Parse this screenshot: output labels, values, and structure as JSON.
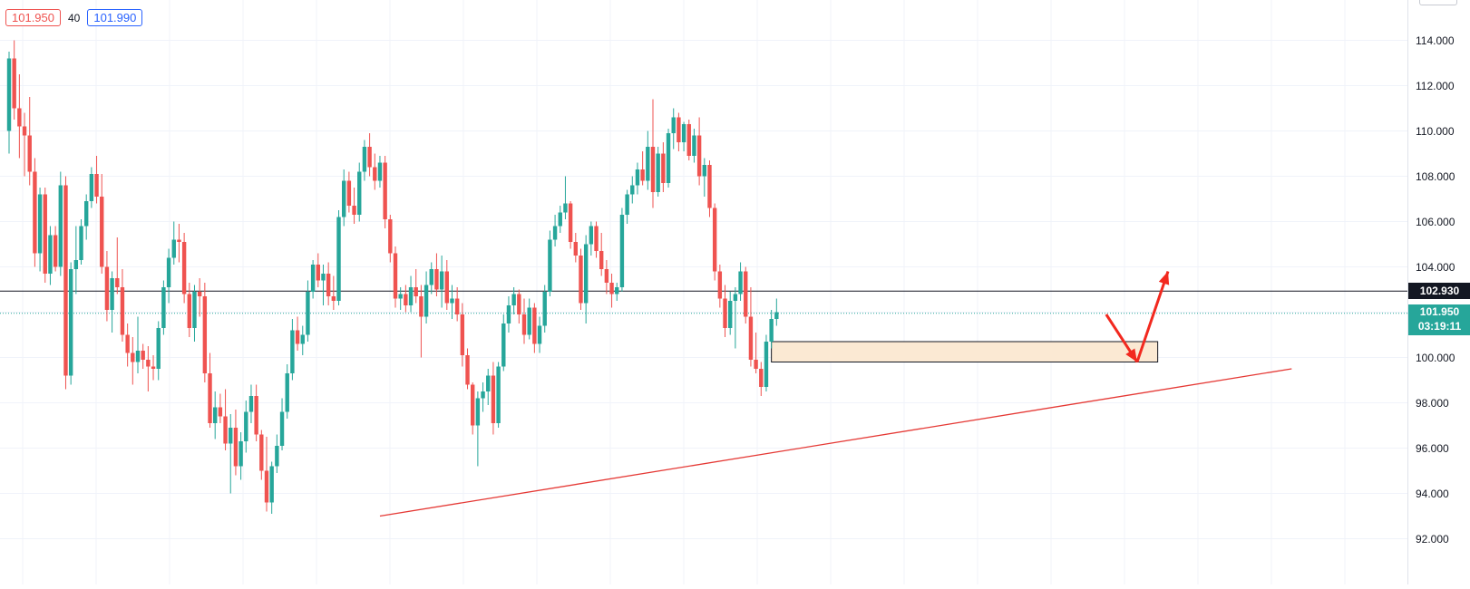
{
  "toolbar": {
    "sell_price": "101.950",
    "spread": "40",
    "buy_price": "101.990"
  },
  "price_axis": {
    "ticks": [
      "114.000",
      "112.000",
      "110.000",
      "108.000",
      "106.000",
      "104.000",
      "100.000",
      "98.000",
      "96.000",
      "94.000",
      "92.000"
    ],
    "horizontal_line_label": "102.930",
    "last_price_label": "101.950",
    "countdown_label": "03:19:11"
  },
  "colors": {
    "up": "#26a69a",
    "down": "#ef5350",
    "trendline": "#e53935",
    "zone_fill": "#fbe9d3",
    "arrow": "#f2291f"
  },
  "chart_data": {
    "type": "candlestick",
    "ylim": [
      91.0,
      116.0
    ],
    "yticks": [
      92,
      94,
      96,
      98,
      100,
      102,
      104,
      106,
      108,
      110,
      112,
      114
    ],
    "horizontal_line": 102.93,
    "last_price": 101.95,
    "support_zone": {
      "from_candle": 148,
      "to_candle": 223,
      "low": 99.8,
      "high": 100.7
    },
    "trendline": {
      "from_candle": 72,
      "from_price": 93.0,
      "to_candle": 249,
      "to_price": 99.5
    },
    "projection_arrow": [
      {
        "candle": 213,
        "price": 101.9
      },
      {
        "candle": 219,
        "price": 99.8
      },
      {
        "candle": 225,
        "price": 103.8
      }
    ],
    "ohlc": [
      [
        110.0,
        113.5,
        109.0,
        113.2
      ],
      [
        113.2,
        114.0,
        110.5,
        111.0
      ],
      [
        111.0,
        112.5,
        108.8,
        110.2
      ],
      [
        110.2,
        110.8,
        108.0,
        109.8
      ],
      [
        109.8,
        111.5,
        107.6,
        108.2
      ],
      [
        108.2,
        108.8,
        104.0,
        104.6
      ],
      [
        104.6,
        107.5,
        103.8,
        107.2
      ],
      [
        107.2,
        107.5,
        103.3,
        103.7
      ],
      [
        103.7,
        105.8,
        103.2,
        105.4
      ],
      [
        105.4,
        105.8,
        103.8,
        104.0
      ],
      [
        104.0,
        108.2,
        103.6,
        107.6
      ],
      [
        107.6,
        108.0,
        98.6,
        99.2
      ],
      [
        99.2,
        104.2,
        98.8,
        103.9
      ],
      [
        103.9,
        105.8,
        102.8,
        104.3
      ],
      [
        104.3,
        106.1,
        104.1,
        105.8
      ],
      [
        105.8,
        107.2,
        105.2,
        106.9
      ],
      [
        106.9,
        108.4,
        106.6,
        108.1
      ],
      [
        108.1,
        108.9,
        106.8,
        107.1
      ],
      [
        107.1,
        108.1,
        103.7,
        104.0
      ],
      [
        104.0,
        104.7,
        101.6,
        102.1
      ],
      [
        102.1,
        103.8,
        101.1,
        103.5
      ],
      [
        103.5,
        105.3,
        102.8,
        103.1
      ],
      [
        103.1,
        103.9,
        100.7,
        101.0
      ],
      [
        101.0,
        101.5,
        99.6,
        100.2
      ],
      [
        100.2,
        100.9,
        98.8,
        99.8
      ],
      [
        99.8,
        101.8,
        99.3,
        100.3
      ],
      [
        100.3,
        100.6,
        99.5,
        99.9
      ],
      [
        99.9,
        100.5,
        98.5,
        99.6
      ],
      [
        99.6,
        100.1,
        99.0,
        99.5
      ],
      [
        99.5,
        101.6,
        99.0,
        101.3
      ],
      [
        101.3,
        103.4,
        101.0,
        103.1
      ],
      [
        103.1,
        104.8,
        102.4,
        104.4
      ],
      [
        104.4,
        106.0,
        104.1,
        105.2
      ],
      [
        105.2,
        105.9,
        104.2,
        105.1
      ],
      [
        105.1,
        105.5,
        102.4,
        102.8
      ],
      [
        102.8,
        103.3,
        100.9,
        101.3
      ],
      [
        101.3,
        103.2,
        100.7,
        102.9
      ],
      [
        102.9,
        103.5,
        101.8,
        102.7
      ],
      [
        102.7,
        103.3,
        98.9,
        99.3
      ],
      [
        99.3,
        100.2,
        96.9,
        97.1
      ],
      [
        97.1,
        98.5,
        96.4,
        97.8
      ],
      [
        97.8,
        98.4,
        97.1,
        97.4
      ],
      [
        97.4,
        98.6,
        95.9,
        96.2
      ],
      [
        96.2,
        97.5,
        94.0,
        96.9
      ],
      [
        96.9,
        97.7,
        94.8,
        95.2
      ],
      [
        95.2,
        96.7,
        94.6,
        96.3
      ],
      [
        96.3,
        98.1,
        95.8,
        97.6
      ],
      [
        97.6,
        98.8,
        97.1,
        98.3
      ],
      [
        98.3,
        98.8,
        96.3,
        96.6
      ],
      [
        96.6,
        96.8,
        94.6,
        95.0
      ],
      [
        95.0,
        96.5,
        93.2,
        93.6
      ],
      [
        93.6,
        95.4,
        93.1,
        95.2
      ],
      [
        95.2,
        96.6,
        94.9,
        96.1
      ],
      [
        96.1,
        98.2,
        95.9,
        97.6
      ],
      [
        97.6,
        99.7,
        97.3,
        99.3
      ],
      [
        99.3,
        101.7,
        99.0,
        101.2
      ],
      [
        101.2,
        101.8,
        100.3,
        100.6
      ],
      [
        100.6,
        101.4,
        100.1,
        101.0
      ],
      [
        101.0,
        103.4,
        100.7,
        102.9
      ],
      [
        102.9,
        104.3,
        102.6,
        104.1
      ],
      [
        104.1,
        104.6,
        103.1,
        103.4
      ],
      [
        103.4,
        104.1,
        102.3,
        103.7
      ],
      [
        103.7,
        104.2,
        102.3,
        102.7
      ],
      [
        102.7,
        103.6,
        102.1,
        102.5
      ],
      [
        102.5,
        106.5,
        102.3,
        106.2
      ],
      [
        106.2,
        108.3,
        105.8,
        107.8
      ],
      [
        107.8,
        108.2,
        106.4,
        106.7
      ],
      [
        106.7,
        107.5,
        105.9,
        106.3
      ],
      [
        106.3,
        108.6,
        106.0,
        108.2
      ],
      [
        108.2,
        109.6,
        107.8,
        109.3
      ],
      [
        109.3,
        109.9,
        108.0,
        108.4
      ],
      [
        108.4,
        109.0,
        107.4,
        107.8
      ],
      [
        107.8,
        108.9,
        107.5,
        108.6
      ],
      [
        108.6,
        108.9,
        105.7,
        106.1
      ],
      [
        106.1,
        106.3,
        104.2,
        104.6
      ],
      [
        104.6,
        104.9,
        102.2,
        102.6
      ],
      [
        102.6,
        103.1,
        102.1,
        102.8
      ],
      [
        102.8,
        103.2,
        102.0,
        102.3
      ],
      [
        102.3,
        103.6,
        102.0,
        103.1
      ],
      [
        103.1,
        103.9,
        102.4,
        102.7
      ],
      [
        102.7,
        103.2,
        100.0,
        101.8
      ],
      [
        101.8,
        103.8,
        101.5,
        103.2
      ],
      [
        103.2,
        104.2,
        102.8,
        103.9
      ],
      [
        103.9,
        104.6,
        102.7,
        103.0
      ],
      [
        103.0,
        104.5,
        102.2,
        103.8
      ],
      [
        103.8,
        104.3,
        102.1,
        102.4
      ],
      [
        102.4,
        103.2,
        101.7,
        102.6
      ],
      [
        102.6,
        103.1,
        101.6,
        101.9
      ],
      [
        101.9,
        102.4,
        99.6,
        100.1
      ],
      [
        100.1,
        100.4,
        98.6,
        98.8
      ],
      [
        98.8,
        98.9,
        96.6,
        97.0
      ],
      [
        97.0,
        98.5,
        95.2,
        98.2
      ],
      [
        98.2,
        98.9,
        97.6,
        98.5
      ],
      [
        98.5,
        99.5,
        97.9,
        99.2
      ],
      [
        99.2,
        99.8,
        96.6,
        97.1
      ],
      [
        97.1,
        99.8,
        96.9,
        99.6
      ],
      [
        99.6,
        101.9,
        99.4,
        101.5
      ],
      [
        101.5,
        102.7,
        101.1,
        102.3
      ],
      [
        102.3,
        103.1,
        101.9,
        102.8
      ],
      [
        102.8,
        103.0,
        101.5,
        101.9
      ],
      [
        101.9,
        102.6,
        100.6,
        101.0
      ],
      [
        101.0,
        102.6,
        100.8,
        102.2
      ],
      [
        102.2,
        102.4,
        100.2,
        100.6
      ],
      [
        100.6,
        101.8,
        100.2,
        101.4
      ],
      [
        101.4,
        103.2,
        101.1,
        102.9
      ],
      [
        102.9,
        105.6,
        102.7,
        105.2
      ],
      [
        105.2,
        106.3,
        104.9,
        105.8
      ],
      [
        105.8,
        106.7,
        105.5,
        106.4
      ],
      [
        106.4,
        108.0,
        106.1,
        106.8
      ],
      [
        106.8,
        106.9,
        104.8,
        105.1
      ],
      [
        105.1,
        105.5,
        104.2,
        104.5
      ],
      [
        104.5,
        104.8,
        102.1,
        102.4
      ],
      [
        102.4,
        105.4,
        101.5,
        105.0
      ],
      [
        105.0,
        106.0,
        104.5,
        105.8
      ],
      [
        105.8,
        106.0,
        104.4,
        104.7
      ],
      [
        104.7,
        105.5,
        103.6,
        103.9
      ],
      [
        103.9,
        104.3,
        102.8,
        103.3
      ],
      [
        103.3,
        103.7,
        102.2,
        102.8
      ],
      [
        102.8,
        103.3,
        102.5,
        103.1
      ],
      [
        103.1,
        106.6,
        102.9,
        106.3
      ],
      [
        106.3,
        107.4,
        105.9,
        107.2
      ],
      [
        107.2,
        108.0,
        106.8,
        107.6
      ],
      [
        107.6,
        108.6,
        107.2,
        108.3
      ],
      [
        108.3,
        109.1,
        107.6,
        107.8
      ],
      [
        107.8,
        110.0,
        107.4,
        109.3
      ],
      [
        109.3,
        111.4,
        106.6,
        107.3
      ],
      [
        107.3,
        109.3,
        107.1,
        109.0
      ],
      [
        109.0,
        109.5,
        107.3,
        107.7
      ],
      [
        107.7,
        110.1,
        107.5,
        109.9
      ],
      [
        109.9,
        111.0,
        109.2,
        110.6
      ],
      [
        110.6,
        110.8,
        109.1,
        109.5
      ],
      [
        109.5,
        110.4,
        109.1,
        110.3
      ],
      [
        110.3,
        110.5,
        108.7,
        108.9
      ],
      [
        108.9,
        110.1,
        108.6,
        109.8
      ],
      [
        109.8,
        110.6,
        107.6,
        108.0
      ],
      [
        108.0,
        108.8,
        107.1,
        108.5
      ],
      [
        108.5,
        108.7,
        106.2,
        106.6
      ],
      [
        106.6,
        106.8,
        103.4,
        103.8
      ],
      [
        103.8,
        104.1,
        102.2,
        102.6
      ],
      [
        102.6,
        103.2,
        100.9,
        101.3
      ],
      [
        101.3,
        102.9,
        101.0,
        102.5
      ],
      [
        102.5,
        103.1,
        100.4,
        102.8
      ],
      [
        102.8,
        104.2,
        102.5,
        103.8
      ],
      [
        103.8,
        104.0,
        101.5,
        101.8
      ],
      [
        101.8,
        103.1,
        99.6,
        99.9
      ],
      [
        99.9,
        101.1,
        99.3,
        99.5
      ],
      [
        99.5,
        99.8,
        98.3,
        98.7
      ],
      [
        98.7,
        101.0,
        98.5,
        100.7
      ],
      [
        100.7,
        102.1,
        100.4,
        101.7
      ],
      [
        101.7,
        102.6,
        101.4,
        102.0
      ]
    ]
  }
}
